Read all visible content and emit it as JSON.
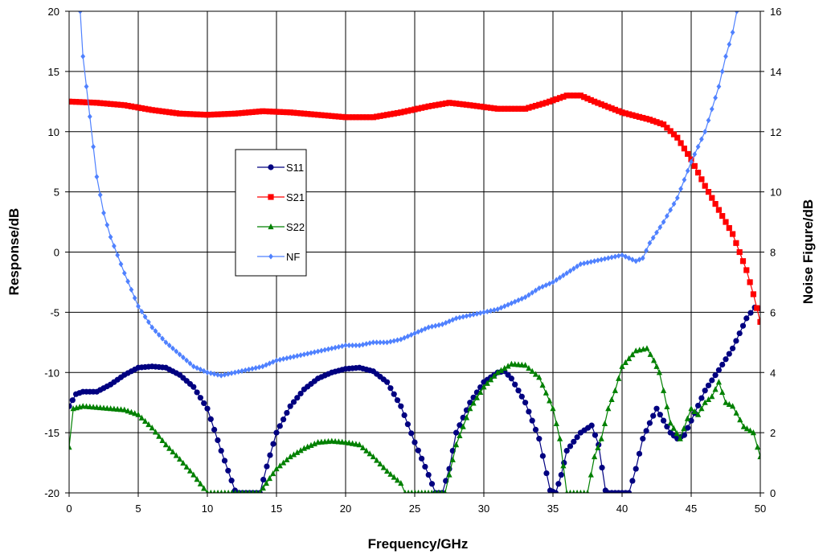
{
  "chart_data": {
    "type": "line",
    "title": "",
    "xlabel": "Frequency/GHz",
    "ylabel": "Response/dB",
    "y2label": "Noise Figure/dB",
    "xlim": [
      0,
      50
    ],
    "ylim": [
      -20,
      20
    ],
    "y2lim": [
      0,
      16
    ],
    "x_ticks": [
      0,
      5,
      10,
      15,
      20,
      25,
      30,
      35,
      40,
      45,
      50
    ],
    "y_ticks": [
      -20,
      -15,
      -10,
      -5,
      0,
      5,
      10,
      15,
      20
    ],
    "y2_ticks": [
      0,
      2,
      4,
      6,
      8,
      10,
      12,
      14,
      16
    ],
    "grid": true,
    "legend": "center-left",
    "series": [
      {
        "name": "S11",
        "axis": "left",
        "color": "#000080",
        "marker": "circle",
        "points": [
          [
            0,
            -12.8
          ],
          [
            0.5,
            -11.8
          ],
          [
            1,
            -11.6
          ],
          [
            2,
            -11.6
          ],
          [
            3,
            -11.0
          ],
          [
            4,
            -10.2
          ],
          [
            5,
            -9.6
          ],
          [
            6,
            -9.5
          ],
          [
            7,
            -9.6
          ],
          [
            8,
            -10.2
          ],
          [
            9,
            -11.2
          ],
          [
            10,
            -13.0
          ],
          [
            11,
            -16.5
          ],
          [
            12,
            -19.8
          ],
          [
            12.3,
            -20
          ],
          [
            13.8,
            -20
          ],
          [
            14.3,
            -17.8
          ],
          [
            15,
            -15.0
          ],
          [
            16,
            -12.8
          ],
          [
            17,
            -11.4
          ],
          [
            18,
            -10.5
          ],
          [
            19,
            -10.0
          ],
          [
            20,
            -9.7
          ],
          [
            21,
            -9.6
          ],
          [
            22,
            -9.9
          ],
          [
            23,
            -10.8
          ],
          [
            24,
            -12.8
          ],
          [
            25,
            -15.8
          ],
          [
            26,
            -18.5
          ],
          [
            26.5,
            -20
          ],
          [
            27,
            -20
          ],
          [
            27.5,
            -18.0
          ],
          [
            28,
            -15.0
          ],
          [
            29,
            -12.5
          ],
          [
            30,
            -10.8
          ],
          [
            31,
            -10.0
          ],
          [
            31.5,
            -9.9
          ],
          [
            32,
            -10.5
          ],
          [
            33,
            -12.5
          ],
          [
            34,
            -15.5
          ],
          [
            34.8,
            -19.8
          ],
          [
            35.2,
            -20
          ],
          [
            35.6,
            -18.5
          ],
          [
            36,
            -16.5
          ],
          [
            37,
            -15.0
          ],
          [
            37.8,
            -14.4
          ],
          [
            38.3,
            -16.0
          ],
          [
            38.8,
            -19.8
          ],
          [
            39,
            -20
          ],
          [
            40.5,
            -20
          ],
          [
            41,
            -18.0
          ],
          [
            41.5,
            -15.5
          ],
          [
            42,
            -14.2
          ],
          [
            42.5,
            -13.0
          ],
          [
            43,
            -14.0
          ],
          [
            43.5,
            -15.0
          ],
          [
            44,
            -15.5
          ],
          [
            44.5,
            -15.2
          ],
          [
            45,
            -14.0
          ],
          [
            46,
            -11.5
          ],
          [
            47,
            -9.8
          ],
          [
            48,
            -8.0
          ],
          [
            49,
            -5.5
          ],
          [
            49.6,
            -4.6
          ],
          [
            50,
            -4.7
          ]
        ]
      },
      {
        "name": "S21",
        "axis": "left",
        "color": "#ff0000",
        "marker": "square",
        "points": [
          [
            0,
            12.5
          ],
          [
            2,
            12.4
          ],
          [
            4,
            12.2
          ],
          [
            6,
            11.8
          ],
          [
            8,
            11.5
          ],
          [
            10,
            11.4
          ],
          [
            12,
            11.5
          ],
          [
            14,
            11.7
          ],
          [
            16,
            11.6
          ],
          [
            18,
            11.4
          ],
          [
            20,
            11.2
          ],
          [
            22,
            11.2
          ],
          [
            24,
            11.6
          ],
          [
            26,
            12.1
          ],
          [
            27.5,
            12.4
          ],
          [
            29,
            12.2
          ],
          [
            31,
            11.9
          ],
          [
            33,
            11.9
          ],
          [
            34.5,
            12.4
          ],
          [
            36,
            13.0
          ],
          [
            37,
            13.0
          ],
          [
            38,
            12.5
          ],
          [
            40,
            11.6
          ],
          [
            42,
            11.0
          ],
          [
            43,
            10.6
          ],
          [
            44,
            9.5
          ],
          [
            45,
            7.7
          ],
          [
            46,
            5.5
          ],
          [
            47,
            3.5
          ],
          [
            48,
            1.5
          ],
          [
            49,
            -1.5
          ],
          [
            49.5,
            -3.5
          ],
          [
            50,
            -5.8
          ]
        ]
      },
      {
        "name": "S22",
        "axis": "left",
        "color": "#008000",
        "marker": "triangle",
        "points": [
          [
            0,
            -16.2
          ],
          [
            0.3,
            -13.0
          ],
          [
            1,
            -12.8
          ],
          [
            2,
            -12.9
          ],
          [
            3,
            -13.0
          ],
          [
            4,
            -13.1
          ],
          [
            5,
            -13.5
          ],
          [
            6,
            -14.6
          ],
          [
            7,
            -16.0
          ],
          [
            8,
            -17.2
          ],
          [
            9,
            -18.5
          ],
          [
            10,
            -20
          ],
          [
            13.8,
            -20
          ],
          [
            14.5,
            -18.8
          ],
          [
            15,
            -18.0
          ],
          [
            16,
            -17.0
          ],
          [
            17,
            -16.3
          ],
          [
            18,
            -15.8
          ],
          [
            19,
            -15.7
          ],
          [
            20,
            -15.8
          ],
          [
            21,
            -16.0
          ],
          [
            22,
            -17.0
          ],
          [
            23,
            -18.2
          ],
          [
            24,
            -19.2
          ],
          [
            24.3,
            -20
          ],
          [
            27.2,
            -20
          ],
          [
            27.5,
            -18.5
          ],
          [
            28,
            -16.0
          ],
          [
            29,
            -13.0
          ],
          [
            30,
            -11.2
          ],
          [
            31,
            -10.0
          ],
          [
            32,
            -9.3
          ],
          [
            33,
            -9.4
          ],
          [
            34,
            -10.4
          ],
          [
            35,
            -13.0
          ],
          [
            35.5,
            -15.5
          ],
          [
            36,
            -20
          ],
          [
            37.5,
            -20
          ],
          [
            38,
            -17.0
          ],
          [
            38.5,
            -15.5
          ],
          [
            39,
            -13.0
          ],
          [
            39.5,
            -11.5
          ],
          [
            40,
            -9.5
          ],
          [
            41,
            -8.2
          ],
          [
            41.8,
            -8.0
          ],
          [
            42.3,
            -9.0
          ],
          [
            42.7,
            -10.0
          ],
          [
            43,
            -11.5
          ],
          [
            43.5,
            -14.2
          ],
          [
            44.2,
            -15.5
          ],
          [
            45,
            -13.0
          ],
          [
            45.5,
            -13.5
          ],
          [
            46,
            -12.5
          ],
          [
            46.5,
            -12.0
          ],
          [
            47,
            -10.8
          ],
          [
            47.5,
            -12.5
          ],
          [
            48,
            -12.8
          ],
          [
            48.8,
            -14.5
          ],
          [
            49.5,
            -15.0
          ],
          [
            49.8,
            -16.2
          ],
          [
            50,
            -17.0
          ]
        ]
      },
      {
        "name": "NF",
        "axis": "right",
        "color": "#4f81ff",
        "marker": "diamond",
        "points": [
          [
            0.8,
            16.0
          ],
          [
            1,
            14.5
          ],
          [
            1.5,
            12.5
          ],
          [
            2,
            10.5
          ],
          [
            2.5,
            9.3
          ],
          [
            3,
            8.5
          ],
          [
            3.5,
            7.9
          ],
          [
            4,
            7.3
          ],
          [
            5,
            6.2
          ],
          [
            6,
            5.5
          ],
          [
            7,
            5.0
          ],
          [
            8,
            4.6
          ],
          [
            9,
            4.2
          ],
          [
            10,
            4.0
          ],
          [
            11,
            3.9
          ],
          [
            12,
            4.0
          ],
          [
            13,
            4.1
          ],
          [
            14,
            4.2
          ],
          [
            15,
            4.4
          ],
          [
            16,
            4.5
          ],
          [
            17,
            4.6
          ],
          [
            18,
            4.7
          ],
          [
            19,
            4.8
          ],
          [
            20,
            4.9
          ],
          [
            21,
            4.9
          ],
          [
            22,
            5.0
          ],
          [
            23,
            5.0
          ],
          [
            24,
            5.1
          ],
          [
            25,
            5.3
          ],
          [
            26,
            5.5
          ],
          [
            27,
            5.6
          ],
          [
            28,
            5.8
          ],
          [
            29,
            5.9
          ],
          [
            30,
            6.0
          ],
          [
            31,
            6.1
          ],
          [
            32,
            6.3
          ],
          [
            33,
            6.5
          ],
          [
            34,
            6.8
          ],
          [
            35,
            7.0
          ],
          [
            36,
            7.3
          ],
          [
            37,
            7.6
          ],
          [
            38,
            7.7
          ],
          [
            39,
            7.8
          ],
          [
            40,
            7.9
          ],
          [
            41,
            7.7
          ],
          [
            41.5,
            7.8
          ],
          [
            42,
            8.3
          ],
          [
            43,
            9.0
          ],
          [
            44,
            9.8
          ],
          [
            45,
            11.0
          ],
          [
            46,
            12.0
          ],
          [
            47,
            13.5
          ],
          [
            47.5,
            14.5
          ],
          [
            48,
            15.3
          ],
          [
            48.3,
            16.0
          ]
        ]
      }
    ]
  }
}
